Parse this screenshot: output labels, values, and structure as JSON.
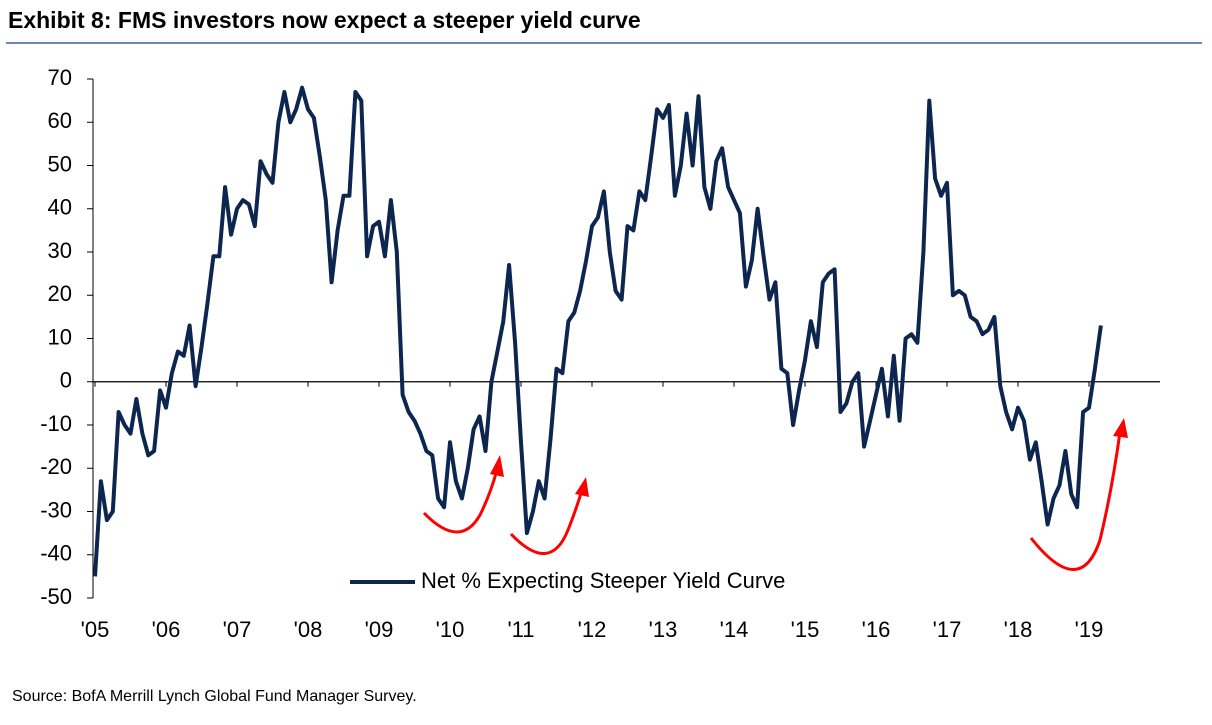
{
  "chart_data": {
    "type": "line",
    "title": "Exhibit 8: FMS investors now expect a steeper yield curve",
    "source": "Source: BofA Merrill Lynch Global Fund Manager Survey.",
    "x": [
      2005,
      2005.083,
      2005.167,
      2005.25,
      2005.333,
      2005.417,
      2005.5,
      2005.583,
      2005.667,
      2005.75,
      2005.833,
      2005.917,
      2006,
      2006.083,
      2006.167,
      2006.25,
      2006.333,
      2006.417,
      2006.5,
      2006.583,
      2006.667,
      2006.75,
      2006.833,
      2006.917,
      2007,
      2007.083,
      2007.167,
      2007.25,
      2007.333,
      2007.417,
      2007.5,
      2007.583,
      2007.667,
      2007.75,
      2007.833,
      2007.917,
      2008,
      2008.083,
      2008.167,
      2008.25,
      2008.333,
      2008.417,
      2008.5,
      2008.583,
      2008.667,
      2008.75,
      2008.833,
      2008.917,
      2009,
      2009.083,
      2009.167,
      2009.25,
      2009.333,
      2009.417,
      2009.5,
      2009.583,
      2009.667,
      2009.75,
      2009.833,
      2009.917,
      2010,
      2010.083,
      2010.167,
      2010.25,
      2010.333,
      2010.417,
      2010.5,
      2010.583,
      2010.667,
      2010.75,
      2010.833,
      2010.917,
      2011,
      2011.083,
      2011.167,
      2011.25,
      2011.333,
      2011.417,
      2011.5,
      2011.583,
      2011.667,
      2011.75,
      2011.833,
      2011.917,
      2012,
      2012.083,
      2012.167,
      2012.25,
      2012.333,
      2012.417,
      2012.5,
      2012.583,
      2012.667,
      2012.75,
      2012.833,
      2012.917,
      2013,
      2013.083,
      2013.167,
      2013.25,
      2013.333,
      2013.417,
      2013.5,
      2013.583,
      2013.667,
      2013.75,
      2013.833,
      2013.917,
      2014,
      2014.083,
      2014.167,
      2014.25,
      2014.333,
      2014.417,
      2014.5,
      2014.583,
      2014.667,
      2014.75,
      2014.833,
      2014.917,
      2015,
      2015.083,
      2015.167,
      2015.25,
      2015.333,
      2015.417,
      2015.5,
      2015.583,
      2015.667,
      2015.75,
      2015.833,
      2015.917,
      2016,
      2016.083,
      2016.167,
      2016.25,
      2016.333,
      2016.417,
      2016.5,
      2016.583,
      2016.667,
      2016.75,
      2016.833,
      2016.917,
      2017,
      2017.083,
      2017.167,
      2017.25,
      2017.333,
      2017.417,
      2017.5,
      2017.583,
      2017.667,
      2017.75,
      2017.833,
      2017.917,
      2018,
      2018.083,
      2018.167,
      2018.25,
      2018.333,
      2018.417,
      2018.5,
      2018.583,
      2018.667,
      2018.75,
      2018.833,
      2018.917,
      2019,
      2019.083,
      2019.167
    ],
    "series": [
      {
        "name": "Net % Expecting Steeper Yield Curve",
        "color": "#0d2650",
        "values": [
          -45,
          -23,
          -32,
          -30,
          -7,
          -10,
          -12,
          -4,
          -12,
          -17,
          -16,
          -2,
          -6,
          2,
          7,
          6,
          13,
          -1,
          8,
          18,
          29,
          29,
          45,
          34,
          40,
          42,
          41,
          36,
          51,
          48,
          46,
          60,
          67,
          60,
          63,
          68,
          63,
          61,
          52,
          42,
          23,
          35,
          43,
          43,
          67,
          65,
          29,
          36,
          37,
          29,
          42,
          30,
          -3,
          -7,
          -9,
          -12,
          -16,
          -17,
          -27,
          -29,
          -14,
          -23,
          -27,
          -20,
          -11,
          -8,
          -16,
          0,
          7,
          14,
          27,
          9,
          -14,
          -35,
          -30,
          -23,
          -27,
          -13,
          3,
          2,
          14,
          16,
          21,
          28,
          36,
          38,
          44,
          30,
          21,
          19,
          36,
          35,
          44,
          42,
          52,
          63,
          61,
          64,
          43,
          50,
          62,
          50,
          66,
          45,
          40,
          51,
          54,
          45,
          42,
          39,
          22,
          28,
          40,
          29,
          19,
          23,
          3,
          2,
          -10,
          -2,
          5,
          14,
          8,
          23,
          25,
          26,
          -7,
          -5,
          0,
          2,
          -15,
          -9,
          -3,
          3,
          -8,
          6,
          -9,
          10,
          11,
          9,
          30,
          65,
          47,
          43,
          46,
          20,
          21,
          20,
          15,
          14,
          11,
          12,
          15,
          -1,
          -7,
          -11,
          -6,
          -9,
          -18,
          -14,
          -23,
          -33,
          -27,
          -24,
          -16,
          -26,
          -29,
          -7,
          -6,
          3,
          13
        ]
      }
    ],
    "xlim": [
      2005,
      2020
    ],
    "xticks": [
      {
        "value": 2005,
        "label": "'05"
      },
      {
        "value": 2006,
        "label": "'06"
      },
      {
        "value": 2007,
        "label": "'07"
      },
      {
        "value": 2008,
        "label": "'08"
      },
      {
        "value": 2009,
        "label": "'09"
      },
      {
        "value": 2010,
        "label": "'10"
      },
      {
        "value": 2011,
        "label": "'11"
      },
      {
        "value": 2012,
        "label": "'12"
      },
      {
        "value": 2013,
        "label": "'13"
      },
      {
        "value": 2014,
        "label": "'14"
      },
      {
        "value": 2015,
        "label": "'15"
      },
      {
        "value": 2016,
        "label": "'16"
      },
      {
        "value": 2017,
        "label": "'17"
      },
      {
        "value": 2018,
        "label": "'18"
      },
      {
        "value": 2019,
        "label": "'19"
      }
    ],
    "ylim": [
      -50,
      70
    ],
    "yticks": [
      -50,
      -40,
      -30,
      -20,
      -10,
      0,
      10,
      20,
      30,
      40,
      50,
      60,
      70
    ],
    "grid": false,
    "legend": "lower center"
  }
}
